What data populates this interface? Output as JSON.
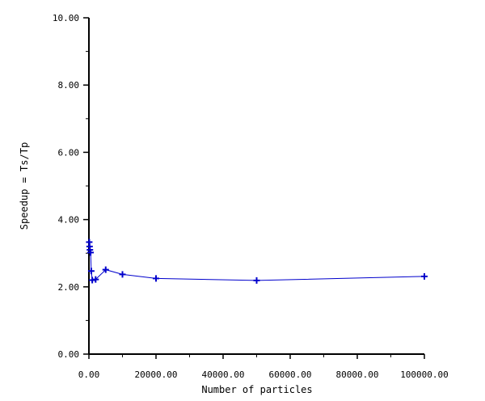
{
  "chart_data": {
    "type": "line",
    "title": "",
    "xlabel": "Number of particles",
    "ylabel": "Speedup = Ts/Tp",
    "xlim": [
      0,
      100000
    ],
    "ylim": [
      0,
      10
    ],
    "x_ticks": [
      0,
      20000,
      40000,
      60000,
      80000,
      100000
    ],
    "x_tick_labels": [
      "0.00",
      "20000.00",
      "40000.00",
      "60000.00",
      "80000.00",
      "100000.00"
    ],
    "y_ticks": [
      0,
      2,
      4,
      6,
      8,
      10
    ],
    "y_tick_labels": [
      "0.00",
      "2.00",
      "4.00",
      "6.00",
      "8.00",
      "10.00"
    ],
    "grid": false,
    "legend": "none",
    "series": [
      {
        "color": "#0000cc",
        "marker": "plus",
        "points": [
          {
            "x": 100,
            "y": 3.33
          },
          {
            "x": 200,
            "y": 3.2
          },
          {
            "x": 300,
            "y": 3.1
          },
          {
            "x": 500,
            "y": 3.02
          },
          {
            "x": 700,
            "y": 2.47
          },
          {
            "x": 1000,
            "y": 2.2
          },
          {
            "x": 2000,
            "y": 2.22
          },
          {
            "x": 5000,
            "y": 2.51
          },
          {
            "x": 10000,
            "y": 2.37
          },
          {
            "x": 20000,
            "y": 2.25
          },
          {
            "x": 50000,
            "y": 2.19
          },
          {
            "x": 100000,
            "y": 2.31
          }
        ]
      }
    ]
  }
}
